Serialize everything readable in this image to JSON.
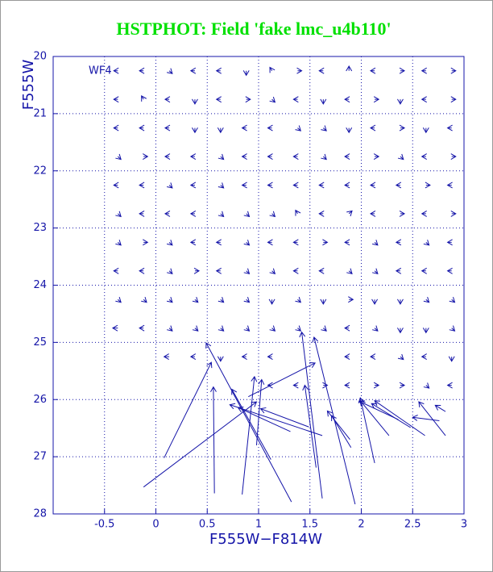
{
  "chart_data": {
    "type": "quiver",
    "title": "HSTPHOT: Field 'fake lmc_u4b110'",
    "title_color": "#00e000",
    "xlabel": "F555W−F814W",
    "ylabel": "F555W",
    "annotation": "WF4",
    "color": "#1414a8",
    "grid": true,
    "xlim": [
      -1,
      3
    ],
    "ylim": [
      28,
      20
    ],
    "xticks": [
      -0.5,
      0,
      0.5,
      1,
      1.5,
      2,
      2.5,
      3
    ],
    "yticks": [
      20,
      21,
      22,
      23,
      24,
      25,
      26,
      27,
      28
    ],
    "rows": [
      {
        "y": 20.25,
        "x": [
          -0.37,
          -0.12,
          0.13,
          0.38,
          0.63,
          0.88,
          1.13,
          1.38,
          1.63,
          1.88,
          2.13,
          2.38,
          2.63,
          2.88
        ],
        "u": [
          -0.04,
          -0.04,
          0.03,
          -0.04,
          -0.04,
          0,
          -0.02,
          0.04,
          -0.04,
          0,
          -0.04,
          0.04,
          -0.04,
          0.04
        ],
        "v": [
          0,
          0,
          0.05,
          0,
          0,
          0.08,
          -0.06,
          0,
          0,
          -0.08,
          0,
          0,
          0,
          0
        ]
      },
      {
        "y": 20.75,
        "x": [
          -0.37,
          -0.12,
          0.13,
          0.38,
          0.63,
          0.88,
          1.13,
          1.38,
          1.63,
          1.88,
          2.13,
          2.38,
          2.63,
          2.88
        ],
        "u": [
          -0.04,
          -0.02,
          -0.04,
          0,
          -0.04,
          0.04,
          0.03,
          -0.04,
          0,
          -0.04,
          0.04,
          0,
          -0.04,
          0.04
        ],
        "v": [
          0,
          -0.06,
          0,
          0.08,
          0,
          0,
          0.05,
          0,
          0.08,
          0,
          0,
          0.08,
          0,
          0
        ]
      },
      {
        "y": 21.25,
        "x": [
          -0.37,
          -0.12,
          0.13,
          0.38,
          0.63,
          0.88,
          1.13,
          1.38,
          1.63,
          1.88,
          2.13,
          2.38,
          2.63,
          2.88
        ],
        "u": [
          -0.04,
          -0.04,
          -0.04,
          0,
          0,
          -0.04,
          -0.04,
          0.03,
          0.03,
          0,
          -0.04,
          0.04,
          0,
          -0.04
        ],
        "v": [
          0,
          0,
          0,
          0.08,
          0.08,
          0,
          0,
          0.05,
          0.05,
          0.08,
          0,
          0,
          0.08,
          0
        ]
      },
      {
        "y": 21.75,
        "x": [
          -0.37,
          -0.12,
          0.13,
          0.38,
          0.63,
          0.88,
          1.13,
          1.38,
          1.63,
          1.88,
          2.13,
          2.38,
          2.63,
          2.88
        ],
        "u": [
          0.03,
          0.04,
          -0.04,
          -0.04,
          0.03,
          -0.04,
          -0.04,
          -0.04,
          0.03,
          -0.04,
          0.04,
          0.03,
          -0.04,
          0.04
        ],
        "v": [
          0.05,
          0,
          0,
          0,
          0.05,
          0,
          0,
          0,
          0.05,
          0,
          0,
          0.05,
          0,
          0
        ]
      },
      {
        "y": 22.25,
        "x": [
          -0.37,
          -0.12,
          0.13,
          0.38,
          0.63,
          0.88,
          1.13,
          1.38,
          1.63,
          1.88,
          2.13,
          2.38,
          2.63,
          2.88
        ],
        "u": [
          -0.04,
          -0.04,
          0.03,
          -0.04,
          0.03,
          -0.04,
          -0.04,
          -0.04,
          -0.04,
          -0.04,
          -0.04,
          -0.04,
          0.04,
          -0.04
        ],
        "v": [
          0,
          0,
          0.05,
          0,
          0.05,
          0,
          0,
          0,
          0,
          0,
          0,
          0,
          0,
          0
        ]
      },
      {
        "y": 22.75,
        "x": [
          -0.37,
          -0.12,
          0.13,
          0.38,
          0.63,
          0.88,
          1.13,
          1.38,
          1.63,
          1.88,
          2.13,
          2.38,
          2.63,
          2.88
        ],
        "u": [
          0.03,
          -0.04,
          -0.04,
          -0.04,
          0.03,
          0.03,
          0.03,
          -0.02,
          -0.04,
          0.03,
          -0.04,
          0.04,
          -0.04,
          0.04
        ],
        "v": [
          0.05,
          0,
          0,
          0,
          0.05,
          0.05,
          0.05,
          -0.06,
          0,
          -0.05,
          0,
          0,
          0,
          0
        ]
      },
      {
        "y": 23.25,
        "x": [
          -0.37,
          -0.12,
          0.13,
          0.38,
          0.63,
          0.88,
          1.13,
          1.38,
          1.63,
          1.88,
          2.13,
          2.38,
          2.63,
          2.88
        ],
        "u": [
          0.03,
          0.04,
          0.03,
          -0.04,
          -0.04,
          0.03,
          -0.04,
          -0.04,
          0.04,
          -0.04,
          0.03,
          -0.04,
          0.03,
          -0.04
        ],
        "v": [
          0.05,
          0,
          0.05,
          0,
          0,
          0.05,
          0,
          0,
          0,
          0,
          0.05,
          0,
          0.05,
          0
        ]
      },
      {
        "y": 23.75,
        "x": [
          -0.37,
          -0.12,
          0.13,
          0.38,
          0.63,
          0.88,
          1.13,
          1.38,
          1.63,
          1.88,
          2.13,
          2.38,
          2.63,
          2.88
        ],
        "u": [
          -0.04,
          -0.04,
          0.03,
          0.04,
          -0.04,
          0.03,
          0.03,
          -0.04,
          -0.04,
          0.03,
          0.03,
          -0.04,
          -0.04,
          -0.04
        ],
        "v": [
          0,
          0,
          0.05,
          0,
          0,
          0.05,
          0.05,
          0,
          0,
          0.05,
          0.05,
          0,
          0,
          0
        ]
      },
      {
        "y": 24.25,
        "x": [
          -0.37,
          -0.12,
          0.13,
          0.38,
          0.63,
          0.88,
          1.13,
          1.38,
          1.63,
          1.88,
          2.13,
          2.38,
          2.63,
          2.88
        ],
        "u": [
          0.03,
          0.03,
          0.03,
          0.03,
          0.03,
          0.03,
          0,
          0.03,
          0,
          0.04,
          0,
          0,
          0.03,
          0.03
        ],
        "v": [
          0.05,
          0.05,
          0.05,
          0.05,
          0.05,
          0.05,
          0.08,
          0.05,
          0.08,
          0,
          0.08,
          0.08,
          0.05,
          0.05
        ]
      },
      {
        "y": 24.75,
        "x": [
          -0.37,
          -0.12,
          0.13,
          0.38,
          0.63,
          0.88,
          1.13,
          1.38,
          1.63,
          1.88,
          2.13,
          2.38,
          2.63,
          2.88
        ],
        "u": [
          -0.05,
          -0.04,
          0.03,
          0.03,
          0.03,
          0.03,
          0.03,
          0.03,
          0.03,
          -0.04,
          0.03,
          0,
          0,
          0.03
        ],
        "v": [
          0,
          0,
          0.05,
          0.05,
          0.05,
          0.05,
          0.05,
          0.05,
          0.05,
          0,
          0.05,
          0.08,
          0.08,
          0.05
        ]
      },
      {
        "y": 25.25,
        "x": [
          0.13,
          0.38,
          0.63,
          0.88,
          1.13,
          1.88,
          2.13,
          2.38,
          2.63,
          2.88
        ],
        "u": [
          -0.05,
          -0.04,
          0,
          -0.04,
          -0.04,
          -0.04,
          -0.04,
          0.03,
          -0.04,
          0
        ],
        "v": [
          0,
          0,
          0.08,
          0,
          0,
          0,
          0,
          0.05,
          0,
          0.08
        ]
      },
      {
        "y": 25.75,
        "x": [
          1.13,
          1.38,
          1.63,
          1.88,
          2.13,
          2.38,
          2.63,
          2.88
        ],
        "u": [
          -0.04,
          -0.04,
          0.04,
          -0.04,
          0.04,
          0.04,
          0.03,
          -0.04
        ],
        "v": [
          0,
          0,
          0,
          0,
          0,
          0,
          0.05,
          0
        ]
      }
    ],
    "vectors": {
      "x": [
        0.08,
        -0.12,
        0.57,
        0.84,
        1.32,
        1.94,
        1.62,
        1.56,
        2.13,
        0.9,
        1.12,
        0.98,
        1.31,
        1.62,
        1.49,
        1.89,
        2.27,
        2.82,
        2.62,
        2.48,
        2.36,
        2.76,
        2.82,
        1.9
      ],
      "y": [
        27.02,
        27.53,
        27.64,
        27.66,
        27.79,
        27.83,
        27.73,
        27.19,
        27.11,
        25.95,
        27.05,
        26.8,
        26.56,
        26.63,
        26.48,
        26.7,
        26.63,
        26.63,
        26.63,
        26.49,
        26.35,
        26.37,
        26.21,
        26.84
      ],
      "u": [
        0.46,
        1.1,
        -0.01,
        0.12,
        -0.83,
        -0.4,
        -0.2,
        -0.11,
        -0.14,
        0.65,
        -0.38,
        0.05,
        -0.51,
        -0.9,
        -0.47,
        -0.22,
        -0.28,
        -0.26,
        -0.49,
        -0.38,
        -0.38,
        -0.26,
        -0.1,
        -0.19
      ],
      "v": [
        -1.67,
        -1.49,
        -1.86,
        -2.06,
        -2.78,
        -2.92,
        -2.91,
        -1.44,
        -1.14,
        -0.59,
        -1.23,
        -1.15,
        -0.42,
        -0.54,
        -0.32,
        -0.5,
        -0.61,
        -0.59,
        -0.61,
        -0.42,
        -0.32,
        -0.06,
        -0.11,
        -0.56
      ]
    }
  }
}
